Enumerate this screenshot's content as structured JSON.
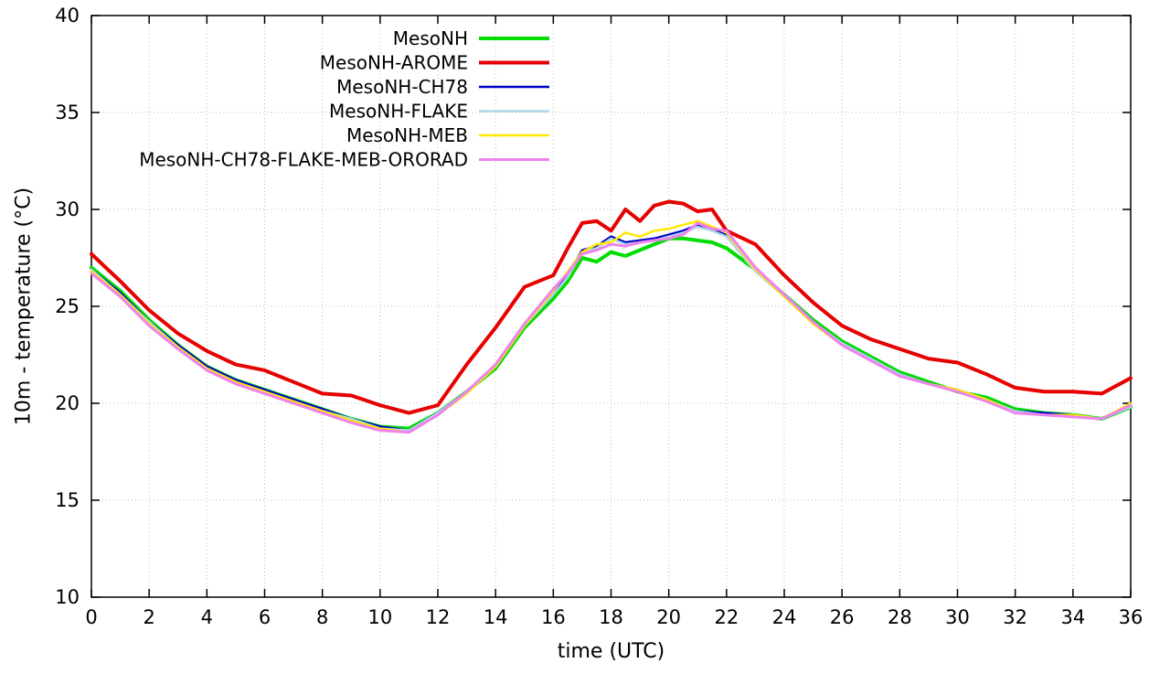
{
  "chart_data": {
    "type": "line",
    "title": "",
    "xlabel": "time (UTC)",
    "ylabel": "10m - temperature (°C)",
    "xlim": [
      0,
      36
    ],
    "ylim": [
      10,
      40
    ],
    "xticks": [
      0,
      2,
      4,
      6,
      8,
      10,
      12,
      14,
      16,
      18,
      20,
      22,
      24,
      26,
      28,
      30,
      32,
      34,
      36
    ],
    "yticks": [
      10,
      15,
      20,
      25,
      30,
      35,
      40
    ],
    "grid": "dotted",
    "grid_color": "#bbbbbb",
    "border_color": "#000000",
    "background": "#ffffff",
    "legend_position": "top-center-inside",
    "x": [
      0,
      1,
      2,
      3,
      4,
      5,
      6,
      7,
      8,
      9,
      10,
      11,
      12,
      13,
      14,
      15,
      16,
      16.5,
      17,
      17.5,
      18,
      18.5,
      19,
      19.5,
      20,
      20.5,
      21,
      21.5,
      22,
      23,
      24,
      25,
      26,
      27,
      28,
      29,
      30,
      31,
      32,
      33,
      34,
      35,
      36
    ],
    "series": [
      {
        "name": "MesoNH",
        "color": "#00dd00",
        "linewidth": 4,
        "values": [
          27.0,
          25.8,
          24.3,
          23.0,
          21.9,
          21.2,
          20.7,
          20.2,
          19.7,
          19.2,
          18.8,
          18.7,
          19.5,
          20.6,
          21.8,
          23.9,
          25.4,
          26.3,
          27.5,
          27.3,
          27.8,
          27.6,
          27.9,
          28.2,
          28.5,
          28.5,
          28.4,
          28.3,
          28.0,
          26.9,
          25.6,
          24.3,
          23.2,
          22.4,
          21.6,
          21.1,
          20.6,
          20.3,
          19.7,
          19.5,
          19.4,
          19.2,
          19.8
        ]
      },
      {
        "name": "MesoNH-AROME",
        "color": "#e60000",
        "linewidth": 4,
        "values": [
          27.7,
          26.3,
          24.8,
          23.6,
          22.7,
          22.0,
          21.7,
          21.1,
          20.5,
          20.4,
          19.9,
          19.5,
          19.9,
          22.0,
          23.9,
          26.0,
          26.6,
          28.0,
          29.3,
          29.4,
          28.9,
          30.0,
          29.4,
          30.2,
          30.4,
          30.3,
          29.9,
          30.0,
          28.9,
          28.2,
          26.6,
          25.2,
          24.0,
          23.3,
          22.8,
          22.3,
          22.1,
          21.5,
          20.8,
          20.6,
          20.6,
          20.5,
          21.3
        ]
      },
      {
        "name": "MesoNH-CH78",
        "color": "#0000c8",
        "linewidth": 2.5,
        "values": [
          26.9,
          25.7,
          24.2,
          23.0,
          21.9,
          21.2,
          20.7,
          20.2,
          19.7,
          19.2,
          18.8,
          18.6,
          19.5,
          20.6,
          21.9,
          24.0,
          25.6,
          26.6,
          27.9,
          28.1,
          28.6,
          28.3,
          28.4,
          28.5,
          28.7,
          28.9,
          29.2,
          29.0,
          28.7,
          26.9,
          25.6,
          24.2,
          23.1,
          22.3,
          21.5,
          21.0,
          20.7,
          20.2,
          19.6,
          19.5,
          19.4,
          19.2,
          19.9
        ]
      },
      {
        "name": "MesoNH-FLAKE",
        "color": "#add8e6",
        "linewidth": 2.5,
        "values": [
          26.9,
          25.6,
          24.2,
          22.9,
          21.8,
          21.1,
          20.6,
          20.1,
          19.6,
          19.2,
          18.7,
          18.6,
          19.5,
          20.6,
          21.9,
          24.0,
          25.6,
          26.5,
          27.8,
          28.0,
          28.5,
          28.2,
          28.3,
          28.4,
          28.6,
          28.8,
          29.1,
          28.9,
          28.6,
          26.8,
          25.5,
          24.2,
          23.1,
          22.3,
          21.5,
          21.0,
          20.7,
          20.2,
          19.6,
          19.4,
          19.4,
          19.2,
          19.8
        ]
      },
      {
        "name": "MesoNH-MEB",
        "color": "#ffe800",
        "linewidth": 2.5,
        "values": [
          26.8,
          25.6,
          24.1,
          22.9,
          21.8,
          21.1,
          20.6,
          20.1,
          19.6,
          19.1,
          18.7,
          18.5,
          19.4,
          20.5,
          21.9,
          24.0,
          25.8,
          26.8,
          27.8,
          28.2,
          28.3,
          28.8,
          28.6,
          28.9,
          29.0,
          29.2,
          29.4,
          29.1,
          28.8,
          26.9,
          25.5,
          24.1,
          23.0,
          22.2,
          21.4,
          21.0,
          20.7,
          20.2,
          19.5,
          19.4,
          19.4,
          19.2,
          20.0
        ]
      },
      {
        "name": "MesoNH-CH78-FLAKE-MEB-ORORAD",
        "color": "#ee82ee",
        "linewidth": 3,
        "values": [
          26.7,
          25.5,
          24.0,
          22.8,
          21.7,
          21.0,
          20.5,
          20.0,
          19.5,
          19.0,
          18.6,
          18.5,
          19.4,
          20.6,
          22.0,
          24.1,
          25.9,
          26.7,
          27.7,
          27.9,
          28.2,
          28.1,
          28.3,
          28.4,
          28.5,
          28.7,
          29.3,
          29.0,
          28.9,
          27.0,
          25.6,
          24.2,
          23.0,
          22.2,
          21.4,
          21.0,
          20.6,
          20.1,
          19.5,
          19.4,
          19.3,
          19.2,
          19.9
        ]
      }
    ]
  }
}
